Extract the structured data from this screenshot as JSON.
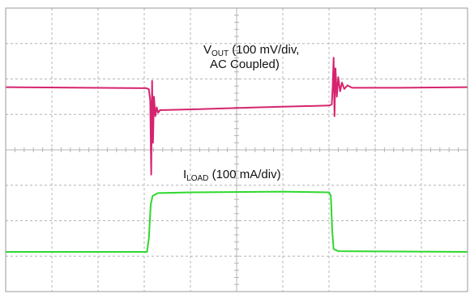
{
  "chart_data": {
    "type": "line",
    "title": "",
    "xlabel": "",
    "ylabel": "",
    "grid": true,
    "grid_divisions": {
      "x": 10,
      "y": 8
    },
    "x_range": [
      0,
      10
    ],
    "y_range": [
      0,
      8
    ],
    "annotations": [
      {
        "id": "vout",
        "main": "V",
        "sub": "OUT",
        "rest": " (100 mV/div,",
        "line2": "AC Coupled)"
      },
      {
        "id": "iload",
        "main": "I",
        "sub": "LOAD",
        "rest": " (100 mA/div)"
      }
    ],
    "series": [
      {
        "id": "vout",
        "color": "#d6246e",
        "points": [
          [
            0.0,
            5.77
          ],
          [
            3.05,
            5.74
          ],
          [
            3.1,
            5.71
          ],
          [
            3.13,
            5.4
          ],
          [
            3.15,
            3.3
          ],
          [
            3.17,
            5.95
          ],
          [
            3.19,
            4.2
          ],
          [
            3.21,
            5.5
          ],
          [
            3.24,
            4.95
          ],
          [
            3.27,
            5.2
          ],
          [
            3.3,
            5.05
          ],
          [
            3.34,
            5.12
          ],
          [
            4.2,
            5.15
          ],
          [
            5.5,
            5.2
          ],
          [
            7.0,
            5.25
          ],
          [
            7.06,
            5.28
          ],
          [
            7.08,
            5.8
          ],
          [
            7.1,
            6.6
          ],
          [
            7.12,
            4.95
          ],
          [
            7.14,
            6.3
          ],
          [
            7.17,
            5.5
          ],
          [
            7.2,
            6.05
          ],
          [
            7.24,
            5.65
          ],
          [
            7.28,
            5.9
          ],
          [
            7.33,
            5.72
          ],
          [
            7.4,
            5.82
          ],
          [
            7.5,
            5.75
          ],
          [
            8.5,
            5.75
          ],
          [
            10.0,
            5.77
          ]
        ]
      },
      {
        "id": "iload",
        "color": "#2ed82e",
        "points": [
          [
            0.0,
            1.12
          ],
          [
            3.06,
            1.12
          ],
          [
            3.1,
            1.5
          ],
          [
            3.14,
            2.45
          ],
          [
            3.18,
            2.7
          ],
          [
            3.3,
            2.78
          ],
          [
            4.0,
            2.8
          ],
          [
            6.0,
            2.82
          ],
          [
            7.0,
            2.8
          ],
          [
            7.04,
            2.7
          ],
          [
            7.07,
            1.7
          ],
          [
            7.1,
            1.2
          ],
          [
            7.2,
            1.14
          ],
          [
            10.0,
            1.12
          ]
        ]
      }
    ]
  }
}
